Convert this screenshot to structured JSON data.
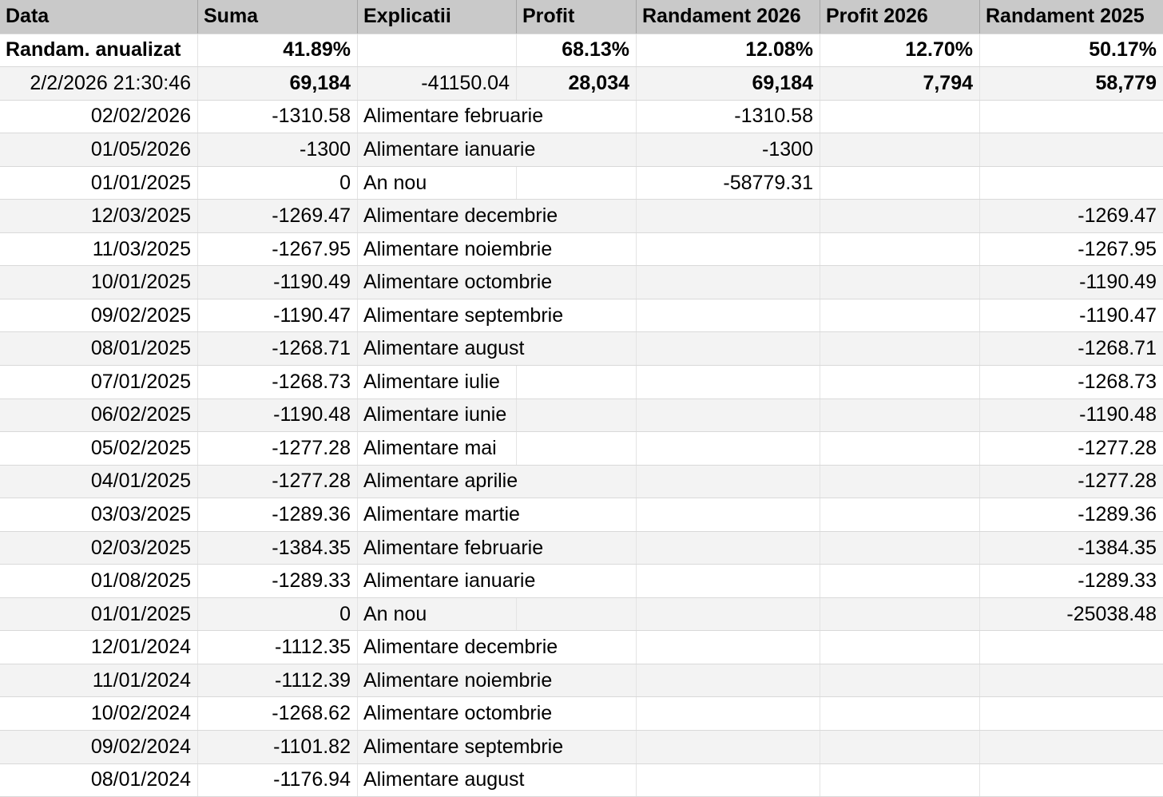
{
  "colors": {
    "header-bg": "#c9c9c9",
    "header-divider": "#a6a6a6",
    "band-white": "#ffffff",
    "band-gray": "#f3f3f3",
    "grid-v": "#e4e4e4",
    "grid-h": "#d9d9d9",
    "text": "#000000"
  },
  "table": {
    "columns": [
      {
        "key": "data",
        "label": "Data"
      },
      {
        "key": "suma",
        "label": "Suma"
      },
      {
        "key": "explicatii",
        "label": "Explicatii"
      },
      {
        "key": "profit",
        "label": "Profit"
      },
      {
        "key": "randament_2026",
        "label": "Randament 2026"
      },
      {
        "key": "profit_2026",
        "label": "Profit 2026"
      },
      {
        "key": "randament_2025",
        "label": "Randament 2025"
      }
    ],
    "rows": [
      {
        "emphasis": "all",
        "data": "Randam. anualizat",
        "suma": "41.89%",
        "explicatii": "",
        "profit": "68.13%",
        "randament_2026": "12.08%",
        "profit_2026": "12.70%",
        "randament_2025": "50.17%"
      },
      {
        "emphasis": "values",
        "data": "2/2/2026 21:30:46",
        "suma": "69,184",
        "explicatii": "-41150.04",
        "profit": "28,034",
        "randament_2026": "69,184",
        "profit_2026": "7,794",
        "randament_2025": "58,779"
      },
      {
        "emphasis": "",
        "data": "02/02/2026",
        "suma": "-1310.58",
        "explicatii": "Alimentare februarie",
        "profit": "",
        "randament_2026": "-1310.58",
        "profit_2026": "",
        "randament_2025": ""
      },
      {
        "emphasis": "",
        "data": "01/05/2026",
        "suma": "-1300",
        "explicatii": "Alimentare ianuarie",
        "profit": "",
        "randament_2026": "-1300",
        "profit_2026": "",
        "randament_2025": ""
      },
      {
        "emphasis": "",
        "data": "01/01/2025",
        "suma": "0",
        "explicatii": "An nou",
        "profit": "",
        "randament_2026": "-58779.31",
        "profit_2026": "",
        "randament_2025": ""
      },
      {
        "emphasis": "",
        "data": "12/03/2025",
        "suma": "-1269.47",
        "explicatii": "Alimentare decembrie",
        "profit": "",
        "randament_2026": "",
        "profit_2026": "",
        "randament_2025": "-1269.47"
      },
      {
        "emphasis": "",
        "data": "11/03/2025",
        "suma": "-1267.95",
        "explicatii": "Alimentare noiembrie",
        "profit": "",
        "randament_2026": "",
        "profit_2026": "",
        "randament_2025": "-1267.95"
      },
      {
        "emphasis": "",
        "data": "10/01/2025",
        "suma": "-1190.49",
        "explicatii": "Alimentare octombrie",
        "profit": "",
        "randament_2026": "",
        "profit_2026": "",
        "randament_2025": "-1190.49"
      },
      {
        "emphasis": "",
        "data": "09/02/2025",
        "suma": "-1190.47",
        "explicatii": "Alimentare septembrie",
        "profit": "",
        "randament_2026": "",
        "profit_2026": "",
        "randament_2025": "-1190.47"
      },
      {
        "emphasis": "",
        "data": "08/01/2025",
        "suma": "-1268.71",
        "explicatii": "Alimentare august",
        "profit": "",
        "randament_2026": "",
        "profit_2026": "",
        "randament_2025": "-1268.71"
      },
      {
        "emphasis": "",
        "data": "07/01/2025",
        "suma": "-1268.73",
        "explicatii": "Alimentare iulie",
        "profit": "",
        "randament_2026": "",
        "profit_2026": "",
        "randament_2025": "-1268.73"
      },
      {
        "emphasis": "",
        "data": "06/02/2025",
        "suma": "-1190.48",
        "explicatii": "Alimentare iunie",
        "profit": "",
        "randament_2026": "",
        "profit_2026": "",
        "randament_2025": "-1190.48"
      },
      {
        "emphasis": "",
        "data": "05/02/2025",
        "suma": "-1277.28",
        "explicatii": "Alimentare mai",
        "profit": "",
        "randament_2026": "",
        "profit_2026": "",
        "randament_2025": "-1277.28"
      },
      {
        "emphasis": "",
        "data": "04/01/2025",
        "suma": "-1277.28",
        "explicatii": "Alimentare aprilie",
        "profit": "",
        "randament_2026": "",
        "profit_2026": "",
        "randament_2025": "-1277.28"
      },
      {
        "emphasis": "",
        "data": "03/03/2025",
        "suma": "-1289.36",
        "explicatii": "Alimentare martie",
        "profit": "",
        "randament_2026": "",
        "profit_2026": "",
        "randament_2025": "-1289.36"
      },
      {
        "emphasis": "",
        "data": "02/03/2025",
        "suma": "-1384.35",
        "explicatii": "Alimentare februarie",
        "profit": "",
        "randament_2026": "",
        "profit_2026": "",
        "randament_2025": "-1384.35"
      },
      {
        "emphasis": "",
        "data": "01/08/2025",
        "suma": "-1289.33",
        "explicatii": "Alimentare ianuarie",
        "profit": "",
        "randament_2026": "",
        "profit_2026": "",
        "randament_2025": "-1289.33"
      },
      {
        "emphasis": "",
        "data": "01/01/2025",
        "suma": "0",
        "explicatii": "An nou",
        "profit": "",
        "randament_2026": "",
        "profit_2026": "",
        "randament_2025": "-25038.48"
      },
      {
        "emphasis": "",
        "data": "12/01/2024",
        "suma": "-1112.35",
        "explicatii": "Alimentare decembrie",
        "profit": "",
        "randament_2026": "",
        "profit_2026": "",
        "randament_2025": ""
      },
      {
        "emphasis": "",
        "data": "11/01/2024",
        "suma": "-1112.39",
        "explicatii": "Alimentare noiembrie",
        "profit": "",
        "randament_2026": "",
        "profit_2026": "",
        "randament_2025": ""
      },
      {
        "emphasis": "",
        "data": "10/02/2024",
        "suma": "-1268.62",
        "explicatii": "Alimentare octombrie",
        "profit": "",
        "randament_2026": "",
        "profit_2026": "",
        "randament_2025": ""
      },
      {
        "emphasis": "",
        "data": "09/02/2024",
        "suma": "-1101.82",
        "explicatii": "Alimentare septembrie",
        "profit": "",
        "randament_2026": "",
        "profit_2026": "",
        "randament_2025": ""
      },
      {
        "emphasis": "",
        "data": "08/01/2024",
        "suma": "-1176.94",
        "explicatii": "Alimentare august",
        "profit": "",
        "randament_2026": "",
        "profit_2026": "",
        "randament_2025": ""
      }
    ]
  }
}
